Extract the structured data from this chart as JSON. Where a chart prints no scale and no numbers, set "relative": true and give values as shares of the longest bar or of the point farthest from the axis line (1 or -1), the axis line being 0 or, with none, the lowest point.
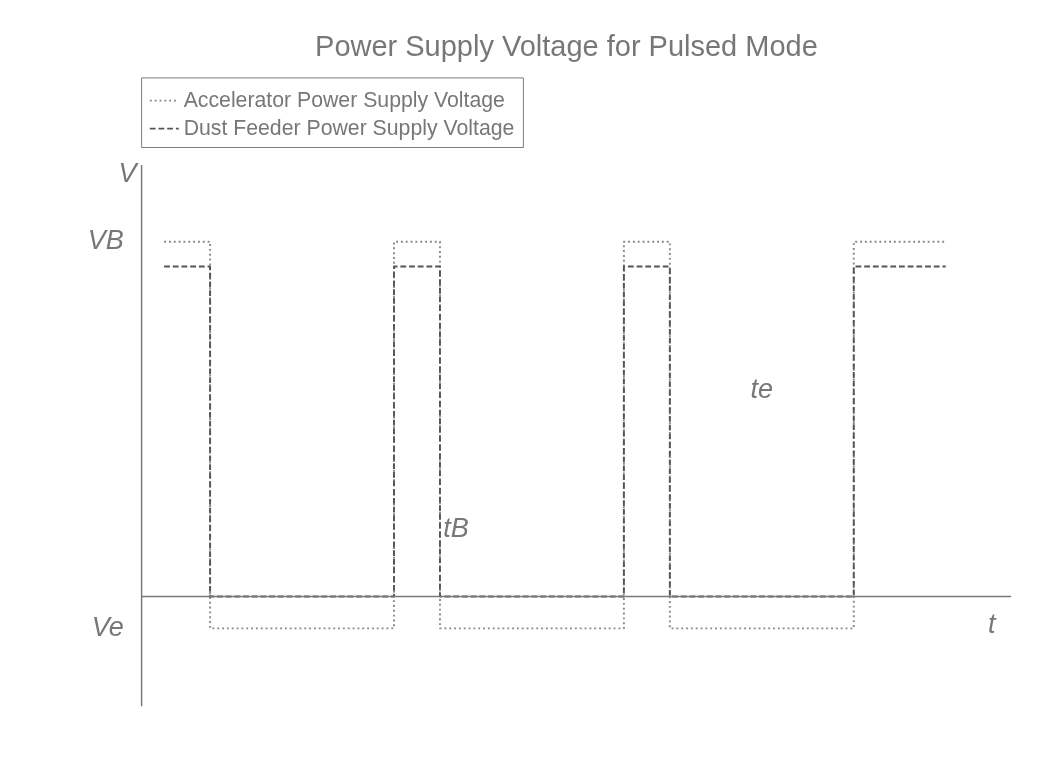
{
  "chart_data": {
    "type": "step",
    "title": "Power Supply Voltage for Pulsed Mode",
    "relative": true,
    "ylabel": "V",
    "xlabel": "t",
    "legend": "top",
    "categories": [
      null,
      null,
      null,
      null,
      null,
      null,
      null,
      null,
      null,
      null,
      null,
      null,
      null,
      null,
      null,
      null,
      null,
      null,
      null,
      null,
      null,
      null,
      null,
      null,
      null,
      null,
      null,
      null,
      null,
      null,
      null,
      null,
      null,
      null,
      null
    ],
    "series": [
      {
        "name": "Accelerator Power Supply Voltage",
        "color": "#8a8a8a",
        "line_style": "dotted",
        "values": [
          1,
          1,
          -0.09,
          -0.09,
          -0.09,
          -0.09,
          -0.09,
          -0.09,
          -0.09,
          -0.09,
          1,
          1,
          -0.09,
          -0.09,
          -0.09,
          -0.09,
          -0.09,
          -0.09,
          -0.09,
          -0.09,
          1,
          1,
          -0.09,
          -0.09,
          -0.09,
          -0.09,
          -0.09,
          -0.09,
          -0.09,
          -0.09,
          1,
          1,
          1,
          1,
          1
        ]
      },
      {
        "name": "Dust Feeder Power Supply Voltage",
        "color": "#555555",
        "line_style": "dashed",
        "values": [
          0.93,
          0.93,
          0,
          0,
          0,
          0,
          0,
          0,
          0,
          0,
          0.93,
          0.93,
          0,
          0,
          0,
          0,
          0,
          0,
          0,
          0,
          0.93,
          0.93,
          0,
          0,
          0,
          0,
          0,
          0,
          0,
          0,
          0.93,
          0.93,
          0.93,
          0.93,
          0.93
        ]
      }
    ],
    "annotations": [
      "VB",
      "Ve",
      "tB",
      "te"
    ]
  }
}
